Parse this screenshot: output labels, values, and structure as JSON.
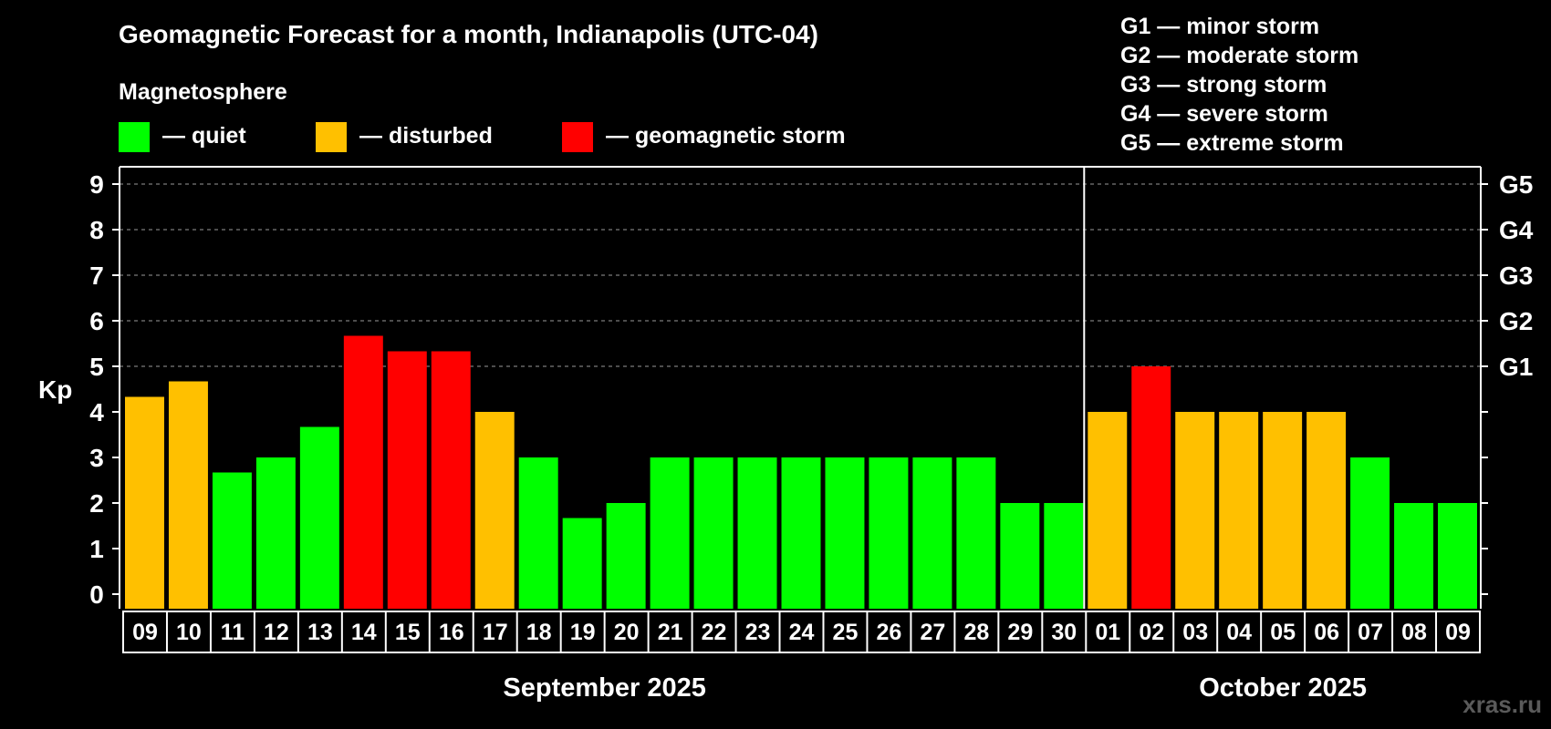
{
  "chart_data": {
    "type": "bar",
    "title": "Geomagnetic Forecast for a month, Indianapolis (UTC-04)",
    "ylabel": "Kp",
    "ylim": [
      0,
      9
    ],
    "yticks": [
      "0",
      "1",
      "2",
      "3",
      "4",
      "5",
      "6",
      "7",
      "8",
      "9"
    ],
    "storm_scale": [
      {
        "level": "G1",
        "kp": 5
      },
      {
        "level": "G2",
        "kp": 6
      },
      {
        "level": "G3",
        "kp": 7
      },
      {
        "level": "G4",
        "kp": 8
      },
      {
        "level": "G5",
        "kp": 9
      }
    ],
    "magnetosphere_title": "Magnetosphere",
    "legend": [
      {
        "key": "quiet",
        "label": "— quiet",
        "color": "#00ff00"
      },
      {
        "key": "disturbed",
        "label": "— disturbed",
        "color": "#ffc000"
      },
      {
        "key": "storm",
        "label": "— geomagnetic storm",
        "color": "#ff0000"
      }
    ],
    "storm_legend": [
      "G1 — minor storm",
      "G2 — moderate storm",
      "G3 — strong storm",
      "G4 — severe storm",
      "G5 — extreme storm"
    ],
    "months": [
      {
        "label": "September 2025",
        "day_count": 22
      },
      {
        "label": "October 2025",
        "day_count": 9
      }
    ],
    "categories": [
      "09",
      "10",
      "11",
      "12",
      "13",
      "14",
      "15",
      "16",
      "17",
      "18",
      "19",
      "20",
      "21",
      "22",
      "23",
      "24",
      "25",
      "26",
      "27",
      "28",
      "29",
      "30",
      "01",
      "02",
      "03",
      "04",
      "05",
      "06",
      "07",
      "08",
      "09"
    ],
    "values": [
      4.33,
      4.67,
      2.67,
      3,
      3.67,
      5.67,
      5.33,
      5.33,
      4,
      3,
      1.67,
      2,
      3,
      3,
      3,
      3,
      3,
      3,
      3,
      3,
      2,
      2,
      4,
      5,
      4,
      4,
      4,
      4,
      3,
      2,
      2
    ],
    "states": [
      "disturbed",
      "disturbed",
      "quiet",
      "quiet",
      "quiet",
      "storm",
      "storm",
      "storm",
      "disturbed",
      "quiet",
      "quiet",
      "quiet",
      "quiet",
      "quiet",
      "quiet",
      "quiet",
      "quiet",
      "quiet",
      "quiet",
      "quiet",
      "quiet",
      "quiet",
      "disturbed",
      "storm",
      "disturbed",
      "disturbed",
      "disturbed",
      "disturbed",
      "quiet",
      "quiet",
      "quiet"
    ],
    "watermark": "xras.ru"
  }
}
